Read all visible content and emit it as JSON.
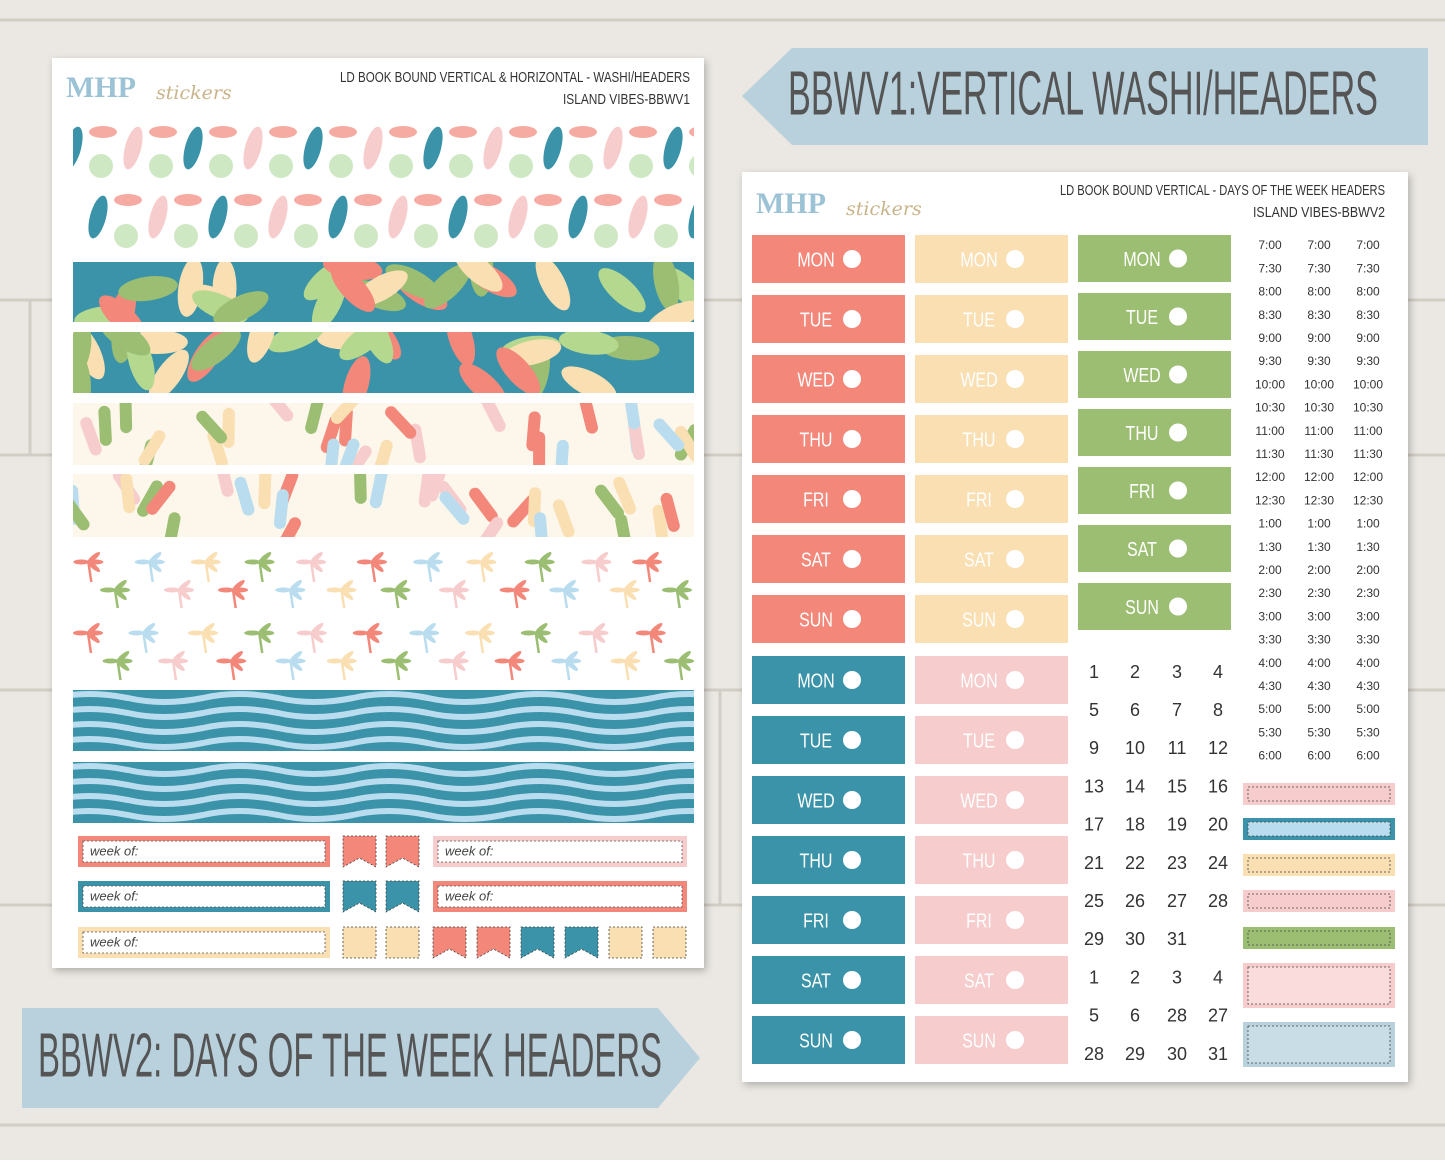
{
  "banners": {
    "top": "BBWV1:VERTICAL WASHI/HEADERS",
    "bottom": "BBWV2: DAYS OF THE WEEK HEADERS"
  },
  "sheet1": {
    "logo": {
      "main": "MHP",
      "script": "stickers"
    },
    "title": "LD BOOK BOUND VERTICAL & HORIZONTAL - WASHI/HEADERS",
    "subtitle": "ISLAND VIBES-BBWV1",
    "week_labels": [
      "week of:",
      "week of:",
      "week of:",
      "week of:",
      "week of:"
    ]
  },
  "sheet2": {
    "logo": {
      "main": "MHP",
      "script": "stickers"
    },
    "title": "LD BOOK BOUND VERTICAL - DAYS OF THE WEEK HEADERS",
    "subtitle": "ISLAND VIBES-BBWV2",
    "day_blocks": [
      {
        "days": [
          "MON",
          "TUE",
          "WED",
          "THU",
          "FRI",
          "SAT",
          "SUN"
        ]
      },
      {
        "days": [
          "MON",
          "TUE",
          "WED",
          "THU",
          "FRI",
          "SAT",
          "SUN"
        ]
      },
      {
        "days": [
          "MON",
          "TUE",
          "WED",
          "THU",
          "FRI",
          "SAT",
          "SUN"
        ]
      },
      {
        "days": [
          "MON",
          "TUE",
          "WED",
          "THU",
          "FRI",
          "SAT",
          "SUN"
        ]
      },
      {
        "days": [
          "MON",
          "TUE",
          "WED",
          "THU",
          "FRI",
          "SAT",
          "SUN"
        ]
      }
    ],
    "time_columns": [
      [
        "7:00",
        "7:30",
        "8:00",
        "8:30",
        "9:00",
        "9:30",
        "10:00",
        "10:30",
        "11:00",
        "11:30",
        "12:00",
        "12:30",
        "1:00",
        "1:30",
        "2:00",
        "2:30",
        "3:00",
        "3:30",
        "4:00",
        "4:30",
        "5:00",
        "5:30",
        "6:00"
      ],
      [
        "7:00",
        "7:30",
        "8:00",
        "8:30",
        "9:00",
        "9:30",
        "10:00",
        "10:30",
        "11:00",
        "11:30",
        "12:00",
        "12:30",
        "1:00",
        "1:30",
        "2:00",
        "2:30",
        "3:00",
        "3:30",
        "4:00",
        "4:30",
        "5:00",
        "5:30",
        "6:00"
      ],
      [
        "7:00",
        "7:30",
        "8:00",
        "8:30",
        "9:00",
        "9:30",
        "10:00",
        "10:30",
        "11:00",
        "11:30",
        "12:00",
        "12:30",
        "1:00",
        "1:30",
        "2:00",
        "2:30",
        "3:00",
        "3:30",
        "4:00",
        "4:30",
        "5:00",
        "5:30",
        "6:00"
      ]
    ],
    "date_rows": [
      [
        1,
        2,
        3,
        4
      ],
      [
        5,
        6,
        7,
        8
      ],
      [
        9,
        10,
        11,
        12
      ],
      [
        13,
        14,
        15,
        16
      ],
      [
        17,
        18,
        19,
        20
      ],
      [
        21,
        22,
        23,
        24
      ],
      [
        25,
        26,
        27,
        28
      ],
      [
        29,
        30,
        31
      ],
      [
        1,
        2,
        3,
        4
      ],
      [
        5,
        6,
        28,
        27
      ],
      [
        28,
        29,
        30,
        31
      ]
    ]
  }
}
